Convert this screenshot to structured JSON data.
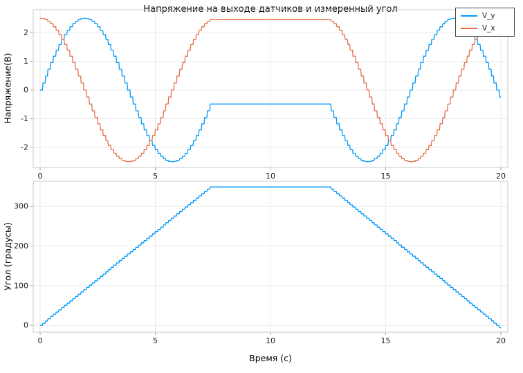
{
  "title": "Напряжение на выходе датчиков и измеренный угол",
  "chart_data": [
    {
      "type": "line",
      "title": "Напряжение на выходе датчиков и измеренный угол",
      "ylabel": "Напряжение(В)",
      "xlabel": "",
      "xlim": [
        -0.3,
        20.3
      ],
      "ylim": [
        -2.7,
        2.8
      ],
      "xticks": [
        0,
        5,
        10,
        15,
        20
      ],
      "yticks": [
        -2,
        -1,
        0,
        1,
        2
      ],
      "grid": true,
      "legend_position": "top-right",
      "amplitude_volts": 2.5,
      "quantization_step_deg": 5.625,
      "sample_dt": 0.02,
      "t_start": 0,
      "t_end": 20,
      "angle_profile_breakpoints": [
        [
          0,
          -2
        ],
        [
          7.45,
          350
        ],
        [
          12.55,
          350
        ],
        [
          20,
          -6
        ]
      ],
      "series": [
        {
          "name": "V_y",
          "color": "#009AFA",
          "fn": "sin",
          "description": "V_y = 2.5·sin(angle): starts ≈0 V, peak +2.45 V at t≈2 s, min −2.5 V at t≈5.8 s, plateau ≈−0.49 V for t≈7.5–12.5 s, min −2.5 V at t≈14.2 s, peak +2.45 V at t≈18 s, ends ≈−0.25 V"
        },
        {
          "name": "V_x",
          "color": "#E36F47",
          "fn": "cos",
          "description": "V_x = 2.5·cos(angle): starts +2.5 V, min −2.5 V at t≈3.9 s, plateau ≈+2.45 V for t≈7.5–12.5 s, min −2.5 V at t≈16.1 s, rises back toward +2.5 V at t=20 s"
        }
      ]
    },
    {
      "type": "line",
      "title": "",
      "ylabel": "Угол (градусы)",
      "xlabel": "Время (с)",
      "xlim": [
        -0.3,
        20.3
      ],
      "ylim": [
        -17,
        363
      ],
      "xticks": [
        0,
        5,
        10,
        15,
        20
      ],
      "yticks": [
        0,
        100,
        200,
        300
      ],
      "grid": true,
      "quantization_step_deg": 5.625,
      "sample_dt": 0.02,
      "t_start": 0,
      "t_end": 20,
      "angle_profile_breakpoints": [
        [
          0,
          -2
        ],
        [
          7.45,
          350
        ],
        [
          12.55,
          350
        ],
        [
          20,
          -6
        ]
      ],
      "series": [
        {
          "name": "Угол",
          "color": "#009AFA",
          "fn": "angle",
          "description": "Measured angle: linear ramp 0→350° over t=0–7.5 s, hold ≈350° over 7.5–12.5 s, linear ramp back to ≈0° over 12.5–20 s; staircase from 5.625° quantization"
        }
      ]
    }
  ]
}
